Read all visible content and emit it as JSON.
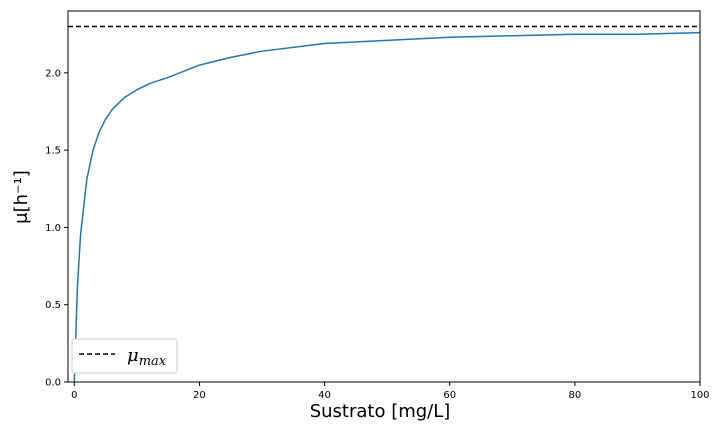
{
  "chart_data": {
    "type": "line",
    "xlabel": "Sustrato [mg/L]",
    "ylabel": "μ[h⁻¹]",
    "xlim": [
      -1,
      100
    ],
    "ylim": [
      0.0,
      2.4
    ],
    "x_ticks": [
      0,
      20,
      40,
      60,
      80,
      100
    ],
    "y_ticks": [
      0.0,
      0.5,
      1.0,
      1.5,
      2.0
    ],
    "x_tick_labels": [
      "0",
      "20",
      "40",
      "60",
      "80",
      "100"
    ],
    "y_tick_labels": [
      "0.0",
      "0.5",
      "1.0",
      "1.5",
      "2.0"
    ],
    "grid": false,
    "legend_position": "lower-left",
    "series": [
      {
        "x": [
          0,
          0.5,
          1,
          2,
          3,
          4,
          5,
          6,
          8,
          10,
          12,
          15,
          20,
          25,
          30,
          40,
          50,
          60,
          70,
          80,
          90,
          100
        ],
        "y": [
          0,
          0.61,
          0.95,
          1.31,
          1.5,
          1.62,
          1.7,
          1.76,
          1.84,
          1.89,
          1.93,
          1.97,
          2.05,
          2.1,
          2.14,
          2.19,
          2.21,
          2.23,
          2.24,
          2.25,
          2.25,
          2.26
        ],
        "color": "#1f77b4",
        "style": "solid"
      },
      {
        "name": "μmax",
        "legend_main": "μ",
        "legend_sub": "max",
        "constant": 2.3,
        "color": "#000000",
        "style": "dashed"
      }
    ]
  }
}
